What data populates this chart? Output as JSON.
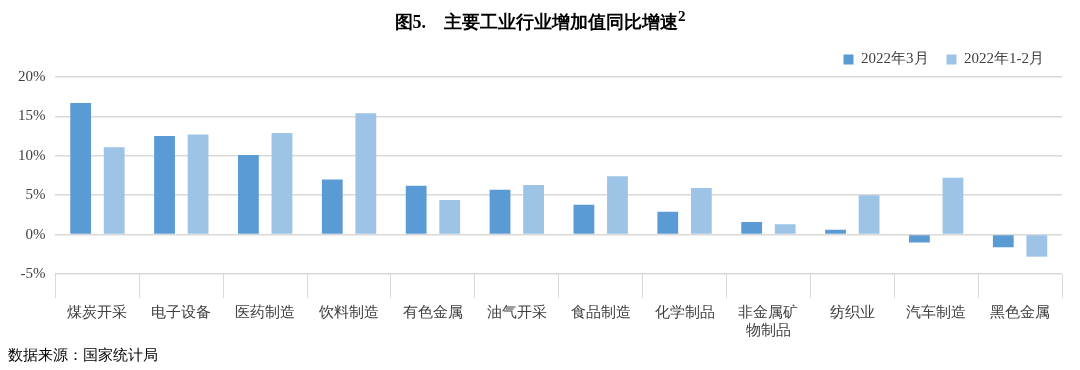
{
  "chart_data": {
    "type": "bar",
    "title": "图5.　主要工业行业增加值同比增速$^{2}$",
    "categories": [
      "煤炭开采",
      "电子设备",
      "医药制造",
      "饮料制造",
      "有色金属",
      "油气开采",
      "食品制造",
      "化学制品",
      "非金属矿物制品",
      "纺织业",
      "汽车制造",
      "黑色金属"
    ],
    "series": [
      {
        "name": "2022年3月",
        "color": "#5b9bd5",
        "values": [
          16.7,
          12.5,
          10.1,
          7.0,
          6.2,
          5.7,
          3.8,
          2.9,
          1.6,
          0.6,
          -1.0,
          -1.6
        ]
      },
      {
        "name": "2022年1-2月",
        "color": "#9dc3e6",
        "values": [
          11.1,
          12.7,
          12.9,
          15.4,
          4.4,
          6.3,
          7.4,
          5.9,
          1.3,
          5.0,
          7.2,
          -2.8
        ]
      }
    ],
    "ylim": [
      -5,
      20
    ],
    "yticks": [
      {
        "value": -5,
        "label": "-5%"
      },
      {
        "value": 0,
        "label": "0%"
      },
      {
        "value": 5,
        "label": "5%"
      },
      {
        "value": 10,
        "label": "10%"
      },
      {
        "value": 15,
        "label": "15%"
      },
      {
        "value": 20,
        "label": "20%"
      }
    ],
    "grid": "y",
    "legend": "top right",
    "annotations": [
      "数据来源：国家统计局"
    ]
  }
}
